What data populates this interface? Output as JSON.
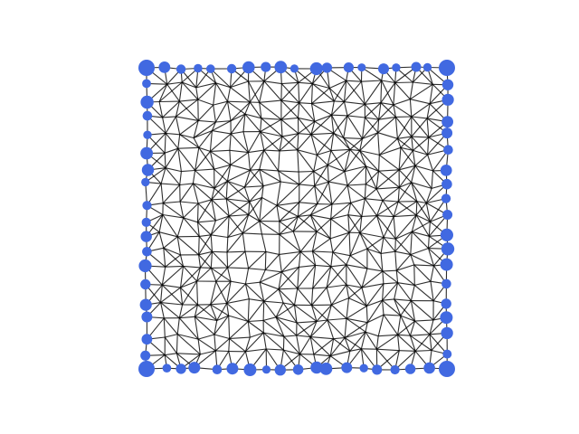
{
  "figure": {
    "background": "#ffffff",
    "edge_color": "#000000",
    "node_color": "#4169e1"
  },
  "mesh": {
    "type": "quad-grid-mesh",
    "rows": 19,
    "cols": 19,
    "boundary_nodes_highlighted": true,
    "corner_nodes_largest": true
  }
}
